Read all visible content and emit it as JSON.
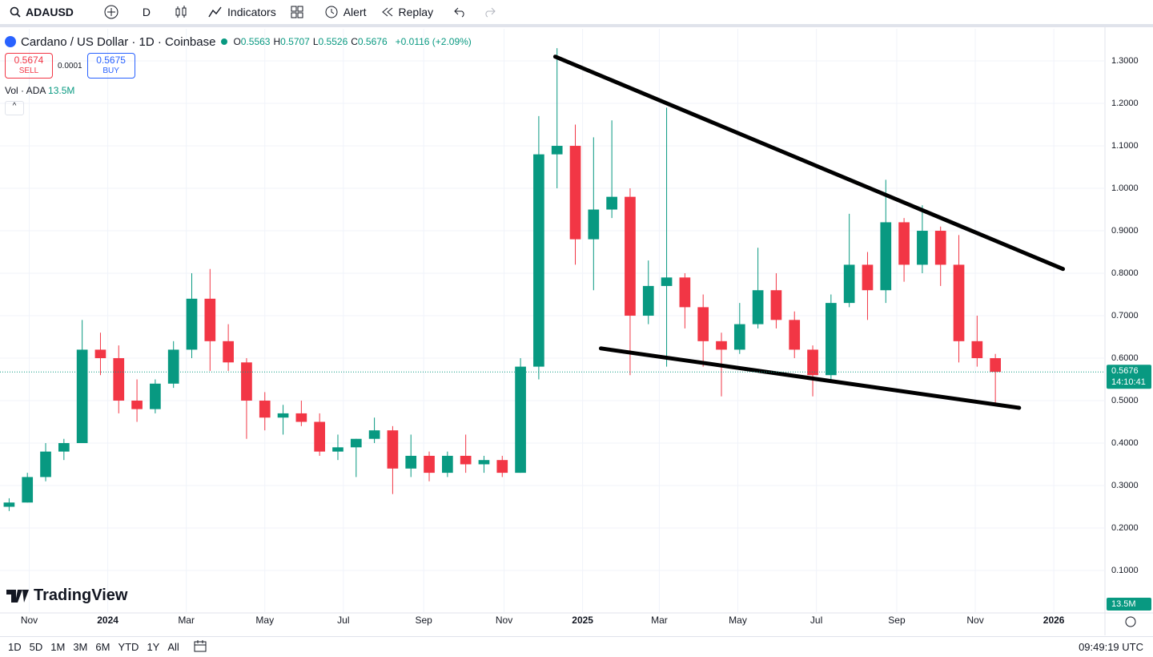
{
  "toolbar": {
    "symbol": "ADAUSD",
    "interval": "D",
    "indicators": "Indicators",
    "alert": "Alert",
    "replay": "Replay"
  },
  "legend": {
    "title": "Cardano / US Dollar · 1D · Coinbase",
    "ohlc": [
      {
        "key": "O",
        "value": "0.5563"
      },
      {
        "key": "H",
        "value": "0.5707"
      },
      {
        "key": "L",
        "value": "0.5526"
      },
      {
        "key": "C",
        "value": "0.5676"
      }
    ],
    "change": "+0.0116 (+2.09%)",
    "sell_price": "0.5674",
    "sell": "SELL",
    "spread": "0.0001",
    "buy_price": "0.5675",
    "buy": "BUY",
    "volume_label": "Vol · ADA",
    "volume_value": "13.5M"
  },
  "logo": "TradingView",
  "chart_data": {
    "type": "candlestick",
    "open": [
      0.25,
      0.26,
      0.32,
      0.38,
      0.4,
      0.62,
      0.6,
      0.5,
      0.48,
      0.54,
      0.62,
      0.74,
      0.64,
      0.59,
      0.5,
      0.46,
      0.47,
      0.45,
      0.38,
      0.39,
      0.41,
      0.43,
      0.34,
      0.37,
      0.33,
      0.37,
      0.35,
      0.36,
      0.33,
      0.58,
      1.08,
      1.1,
      0.88,
      0.95,
      0.98,
      0.7,
      0.77,
      0.79,
      0.72,
      0.64,
      0.62,
      0.68,
      0.76,
      0.69,
      0.62,
      0.56,
      0.73,
      0.82,
      0.76,
      0.92,
      0.82,
      0.9,
      0.82,
      0.64,
      0.6
    ],
    "high": [
      0.27,
      0.33,
      0.4,
      0.41,
      0.69,
      0.66,
      0.63,
      0.55,
      0.55,
      0.64,
      0.8,
      0.81,
      0.68,
      0.6,
      0.52,
      0.49,
      0.5,
      0.47,
      0.42,
      0.41,
      0.46,
      0.44,
      0.42,
      0.38,
      0.38,
      0.42,
      0.37,
      0.37,
      0.6,
      1.17,
      1.33,
      1.15,
      1.12,
      1.16,
      1.0,
      0.83,
      1.19,
      0.8,
      0.75,
      0.66,
      0.73,
      0.86,
      0.8,
      0.71,
      0.63,
      0.75,
      0.94,
      0.85,
      1.02,
      0.93,
      0.96,
      0.91,
      0.89,
      0.7,
      0.61
    ],
    "low": [
      0.24,
      0.26,
      0.31,
      0.36,
      0.4,
      0.56,
      0.47,
      0.45,
      0.47,
      0.53,
      0.6,
      0.57,
      0.57,
      0.41,
      0.43,
      0.42,
      0.44,
      0.37,
      0.36,
      0.32,
      0.4,
      0.28,
      0.32,
      0.31,
      0.32,
      0.33,
      0.33,
      0.32,
      0.33,
      0.55,
      1.0,
      0.82,
      0.76,
      0.93,
      0.56,
      0.68,
      0.58,
      0.67,
      0.58,
      0.51,
      0.61,
      0.67,
      0.67,
      0.6,
      0.51,
      0.55,
      0.72,
      0.69,
      0.73,
      0.78,
      0.8,
      0.77,
      0.59,
      0.58,
      0.49
    ],
    "close": [
      0.26,
      0.32,
      0.38,
      0.4,
      0.62,
      0.6,
      0.5,
      0.48,
      0.54,
      0.62,
      0.74,
      0.64,
      0.59,
      0.5,
      0.46,
      0.47,
      0.45,
      0.38,
      0.39,
      0.41,
      0.43,
      0.34,
      0.37,
      0.33,
      0.37,
      0.35,
      0.36,
      0.33,
      0.58,
      1.08,
      1.1,
      0.88,
      0.95,
      0.98,
      0.7,
      0.77,
      0.79,
      0.72,
      0.64,
      0.62,
      0.68,
      0.76,
      0.69,
      0.62,
      0.56,
      0.73,
      0.82,
      0.76,
      0.92,
      0.82,
      0.9,
      0.82,
      0.64,
      0.6,
      0.5676
    ],
    "up_color": "#089981",
    "down_color": "#f23645",
    "xlim": [
      -0.5,
      60
    ],
    "xticks": [
      {
        "value": 1.1,
        "label": "Nov"
      },
      {
        "value": 5.4,
        "label": "2024"
      },
      {
        "value": 9.7,
        "label": "Mar"
      },
      {
        "value": 14,
        "label": "May"
      },
      {
        "value": 18.3,
        "label": "Jul"
      },
      {
        "value": 22.7,
        "label": "Sep"
      },
      {
        "value": 27.1,
        "label": "Nov"
      },
      {
        "value": 31.4,
        "label": "2025"
      },
      {
        "value": 35.6,
        "label": "Mar"
      },
      {
        "value": 39.9,
        "label": "May"
      },
      {
        "value": 44.2,
        "label": "Jul"
      },
      {
        "value": 48.6,
        "label": "Sep"
      },
      {
        "value": 52.9,
        "label": "Nov"
      },
      {
        "value": 57.2,
        "label": "2026"
      }
    ],
    "ylim": [
      0,
      1.368
    ],
    "yticks": [
      {
        "value": 0.1,
        "label": "0.1000"
      },
      {
        "value": 0.2,
        "label": "0.2000"
      },
      {
        "value": 0.3,
        "label": "0.3000"
      },
      {
        "value": 0.4,
        "label": "0.4000"
      },
      {
        "value": 0.5,
        "label": "0.5000"
      },
      {
        "value": 0.6,
        "label": "0.6000"
      },
      {
        "value": 0.7,
        "label": "0.7000"
      },
      {
        "value": 0.8,
        "label": "0.8000"
      },
      {
        "value": 0.9,
        "label": "0.9000"
      },
      {
        "value": 1.0,
        "label": "1.0000"
      },
      {
        "value": 1.1,
        "label": "1.1000"
      },
      {
        "value": 1.2,
        "label": "1.2000"
      },
      {
        "value": 1.3,
        "label": "1.3000"
      }
    ],
    "grid": true,
    "last_price": {
      "value": 0.5676,
      "label": "0.5676"
    },
    "countdown": "14:10:41",
    "volume_last": "13.5M",
    "trendlines": [
      {
        "x": [
          29.9,
          57.7
        ],
        "y": [
          1.31,
          0.81
        ]
      },
      {
        "x": [
          32.4,
          55.3
        ],
        "y": [
          0.623,
          0.483
        ]
      }
    ]
  },
  "footer": {
    "ranges": [
      "1D",
      "5D",
      "1M",
      "3M",
      "6M",
      "YTD",
      "1Y",
      "All"
    ],
    "clock": "09:49:19 UTC"
  }
}
